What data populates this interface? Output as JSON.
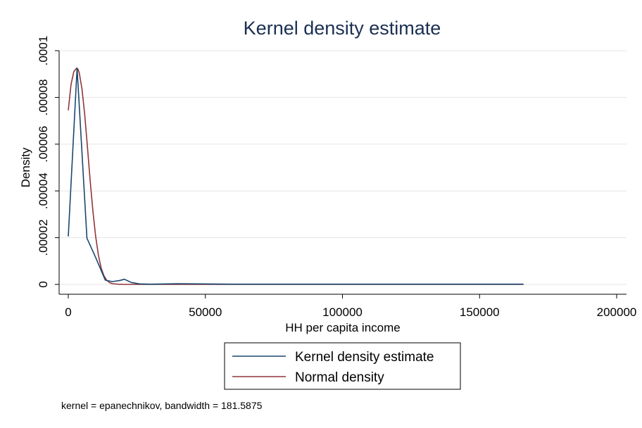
{
  "chart_data": {
    "type": "line",
    "title": "Kernel density estimate",
    "xlabel": "HH per capita income",
    "ylabel": "Density",
    "xlim": [
      0,
      200000
    ],
    "ylim": [
      0,
      0.0001
    ],
    "x_ticks": [
      0,
      50000,
      100000,
      150000,
      200000
    ],
    "x_tick_labels": [
      "0",
      "50000",
      "100000",
      "150000",
      "200000"
    ],
    "y_ticks": [
      0,
      2e-05,
      4e-05,
      6e-05,
      8e-05,
      0.0001
    ],
    "y_tick_labels": [
      "0",
      ".00002",
      ".00004",
      ".00006",
      ".00008",
      ".0001"
    ],
    "grid": true,
    "legend_position": "bottom",
    "note": "kernel = epanechnikov, bandwidth = 181.5875",
    "series": [
      {
        "name": "Kernel density estimate",
        "color": "#1a476f",
        "x": [
          0,
          3200,
          6800,
          10000,
          13500,
          16000,
          18500,
          20500,
          23000,
          26000,
          30000,
          40000,
          60000,
          100000,
          150000,
          166000
        ],
        "y": [
          2.05e-05,
          9.25e-05,
          1.98e-05,
          1.15e-05,
          1.8e-06,
          1.2e-06,
          1.6e-06,
          2.2e-06,
          8e-07,
          2e-07,
          1e-07,
          3e-07,
          1e-07,
          1e-07,
          1e-07,
          1e-07
        ]
      },
      {
        "name": "Normal density",
        "color": "#90353b",
        "x": [
          0,
          1000,
          2000,
          3000,
          3500,
          4000,
          5000,
          6000,
          7000,
          8000,
          9000,
          10000,
          11000,
          12000,
          13000,
          14000,
          15000,
          16000,
          18000,
          20000,
          25000,
          30000,
          50000,
          100000,
          150000,
          166000
        ],
        "y": [
          7.45e-05,
          8.55e-05,
          9.1e-05,
          9.25e-05,
          9.22e-05,
          9.05e-05,
          8.35e-05,
          7.25e-05,
          5.85e-05,
          4.4e-05,
          3.1e-05,
          2.05e-05,
          1.25e-05,
          7e-06,
          3.7e-06,
          1.8e-06,
          8e-07,
          3e-07,
          1e-07,
          0,
          0,
          0,
          0,
          0,
          0,
          0
        ]
      }
    ]
  }
}
